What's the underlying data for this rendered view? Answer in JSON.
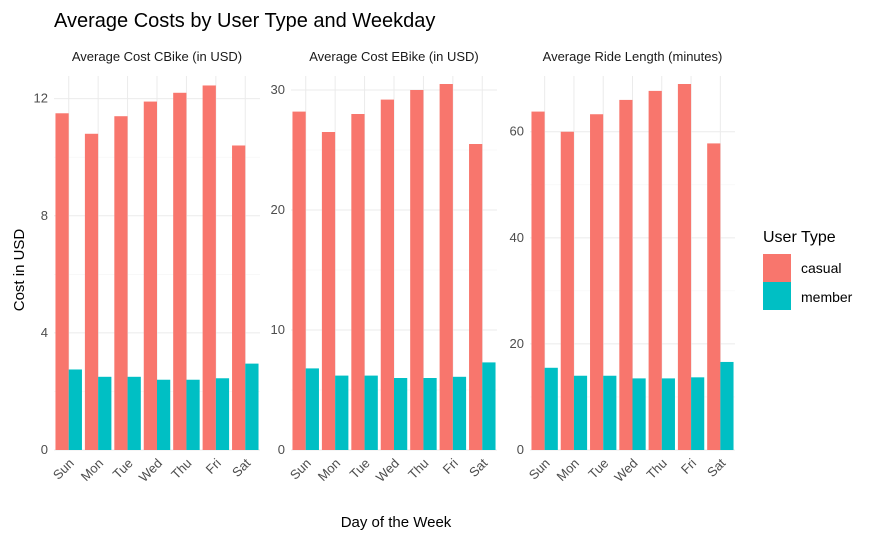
{
  "chart_data": {
    "type": "bar",
    "title": "Average Costs by User Type and Weekday",
    "xlabel": "Day of the Week",
    "ylabel": "Cost in USD",
    "legend": {
      "title": "User Type",
      "placement": "right",
      "entries": [
        {
          "name": "casual",
          "color": "#F8766D"
        },
        {
          "name": "member",
          "color": "#00BFC4"
        }
      ]
    },
    "grid": true,
    "categories": [
      "Sun",
      "Mon",
      "Tue",
      "Wed",
      "Thu",
      "Fri",
      "Sat"
    ],
    "panels": [
      {
        "title": "Average Cost CBike (in USD)",
        "ylim": [
          0,
          12.5
        ],
        "yticks": [
          0,
          4,
          8,
          12
        ],
        "series": [
          {
            "name": "casual",
            "values": [
              11.5,
              10.8,
              11.4,
              11.9,
              12.2,
              12.45,
              10.4
            ]
          },
          {
            "name": "member",
            "values": [
              2.75,
              2.5,
              2.5,
              2.4,
              2.4,
              2.45,
              2.95
            ]
          }
        ]
      },
      {
        "title": "Average Cost EBike (in USD)",
        "ylim": [
          0,
          30.5
        ],
        "yticks": [
          0,
          10,
          20,
          30
        ],
        "series": [
          {
            "name": "casual",
            "values": [
              28.2,
              26.5,
              28.0,
              29.2,
              30.0,
              30.5,
              25.5
            ]
          },
          {
            "name": "member",
            "values": [
              6.8,
              6.2,
              6.2,
              6.0,
              6.0,
              6.1,
              7.3
            ]
          }
        ]
      },
      {
        "title": "Average Ride Length (minutes)",
        "ylim": [
          0,
          69
        ],
        "yticks": [
          0,
          20,
          40,
          60
        ],
        "series": [
          {
            "name": "casual",
            "values": [
              63.8,
              60.0,
              63.3,
              66.0,
              67.7,
              69.0,
              57.8
            ]
          },
          {
            "name": "member",
            "values": [
              15.5,
              14.0,
              14.0,
              13.5,
              13.5,
              13.7,
              16.6
            ]
          }
        ]
      }
    ]
  }
}
